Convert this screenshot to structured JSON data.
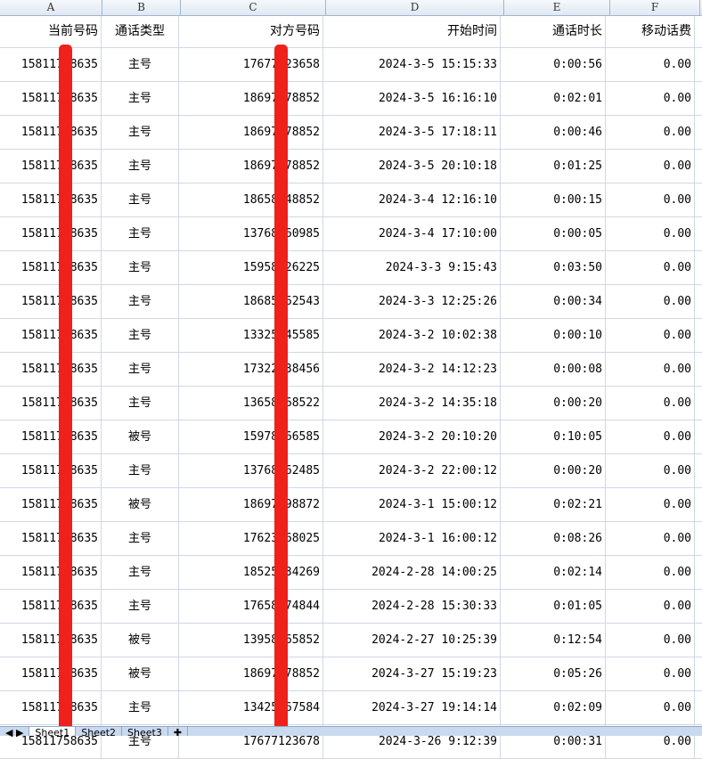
{
  "columns": [
    "A",
    "B",
    "C",
    "D",
    "E",
    "F"
  ],
  "headers": [
    "当前号码",
    "通话类型",
    "对方号码",
    "开始时间",
    "通话时长",
    "移动话费"
  ],
  "rows": [
    [
      "15811758635",
      "主号",
      "17677123658",
      "2024-3-5 15:15:33",
      "0:00:56",
      "0.00"
    ],
    [
      "15811758635",
      "主号",
      "18697378852",
      "2024-3-5 16:16:10",
      "0:02:01",
      "0.00"
    ],
    [
      "15811758635",
      "主号",
      "18697378852",
      "2024-3-5 17:18:11",
      "0:00:46",
      "0.00"
    ],
    [
      "15811758635",
      "主号",
      "18697378852",
      "2024-3-5 20:10:18",
      "0:01:25",
      "0.00"
    ],
    [
      "15811758635",
      "主号",
      "18658548852",
      "2024-3-4 12:16:10",
      "0:00:15",
      "0.00"
    ],
    [
      "15811758635",
      "主号",
      "13768260985",
      "2024-3-4 17:10:00",
      "0:00:05",
      "0.00"
    ],
    [
      "15811758635",
      "主号",
      "15958426225",
      "2024-3-3 9:15:43",
      "0:03:50",
      "0.00"
    ],
    [
      "15811758635",
      "主号",
      "18685562543",
      "2024-3-3 12:25:26",
      "0:00:34",
      "0.00"
    ],
    [
      "15811758635",
      "主号",
      "13325545585",
      "2024-3-2 10:02:38",
      "0:00:10",
      "0.00"
    ],
    [
      "15811758635",
      "主号",
      "17322538456",
      "2024-3-2 14:12:23",
      "0:00:08",
      "0.00"
    ],
    [
      "15811758635",
      "主号",
      "13658568522",
      "2024-3-2 14:35:18",
      "0:00:20",
      "0.00"
    ],
    [
      "15811758635",
      "被号",
      "15978166585",
      "2024-3-2 20:10:20",
      "0:10:05",
      "0.00"
    ],
    [
      "15811758635",
      "主号",
      "13768262485",
      "2024-3-2 22:00:12",
      "0:00:20",
      "0.00"
    ],
    [
      "15811758635",
      "被号",
      "18697598872",
      "2024-3-1 15:00:12",
      "0:02:21",
      "0.00"
    ],
    [
      "15811758635",
      "主号",
      "17623568025",
      "2024-3-1 16:00:12",
      "0:08:26",
      "0.00"
    ],
    [
      "15811758635",
      "主号",
      "18525534269",
      "2024-2-28 14:00:25",
      "0:02:14",
      "0.00"
    ],
    [
      "15811758635",
      "主号",
      "17658474844",
      "2024-2-28 15:30:33",
      "0:01:05",
      "0.00"
    ],
    [
      "15811758635",
      "被号",
      "13958265852",
      "2024-2-27 10:25:39",
      "0:12:54",
      "0.00"
    ],
    [
      "15811758635",
      "被号",
      "18697378852",
      "2024-3-27 15:19:23",
      "0:05:26",
      "0.00"
    ],
    [
      "15811758635",
      "主号",
      "13425567584",
      "2024-3-27 19:14:14",
      "0:02:09",
      "0.00"
    ],
    [
      "15811758635",
      "主号",
      "17677123678",
      "2024-3-26 9:12:39",
      "0:00:31",
      "0.00"
    ]
  ],
  "sheet_tabs": [
    "Sheet1",
    "Sheet2",
    "Sheet3"
  ],
  "active_tab": "Sheet1",
  "redaction_color": "#f0201a"
}
